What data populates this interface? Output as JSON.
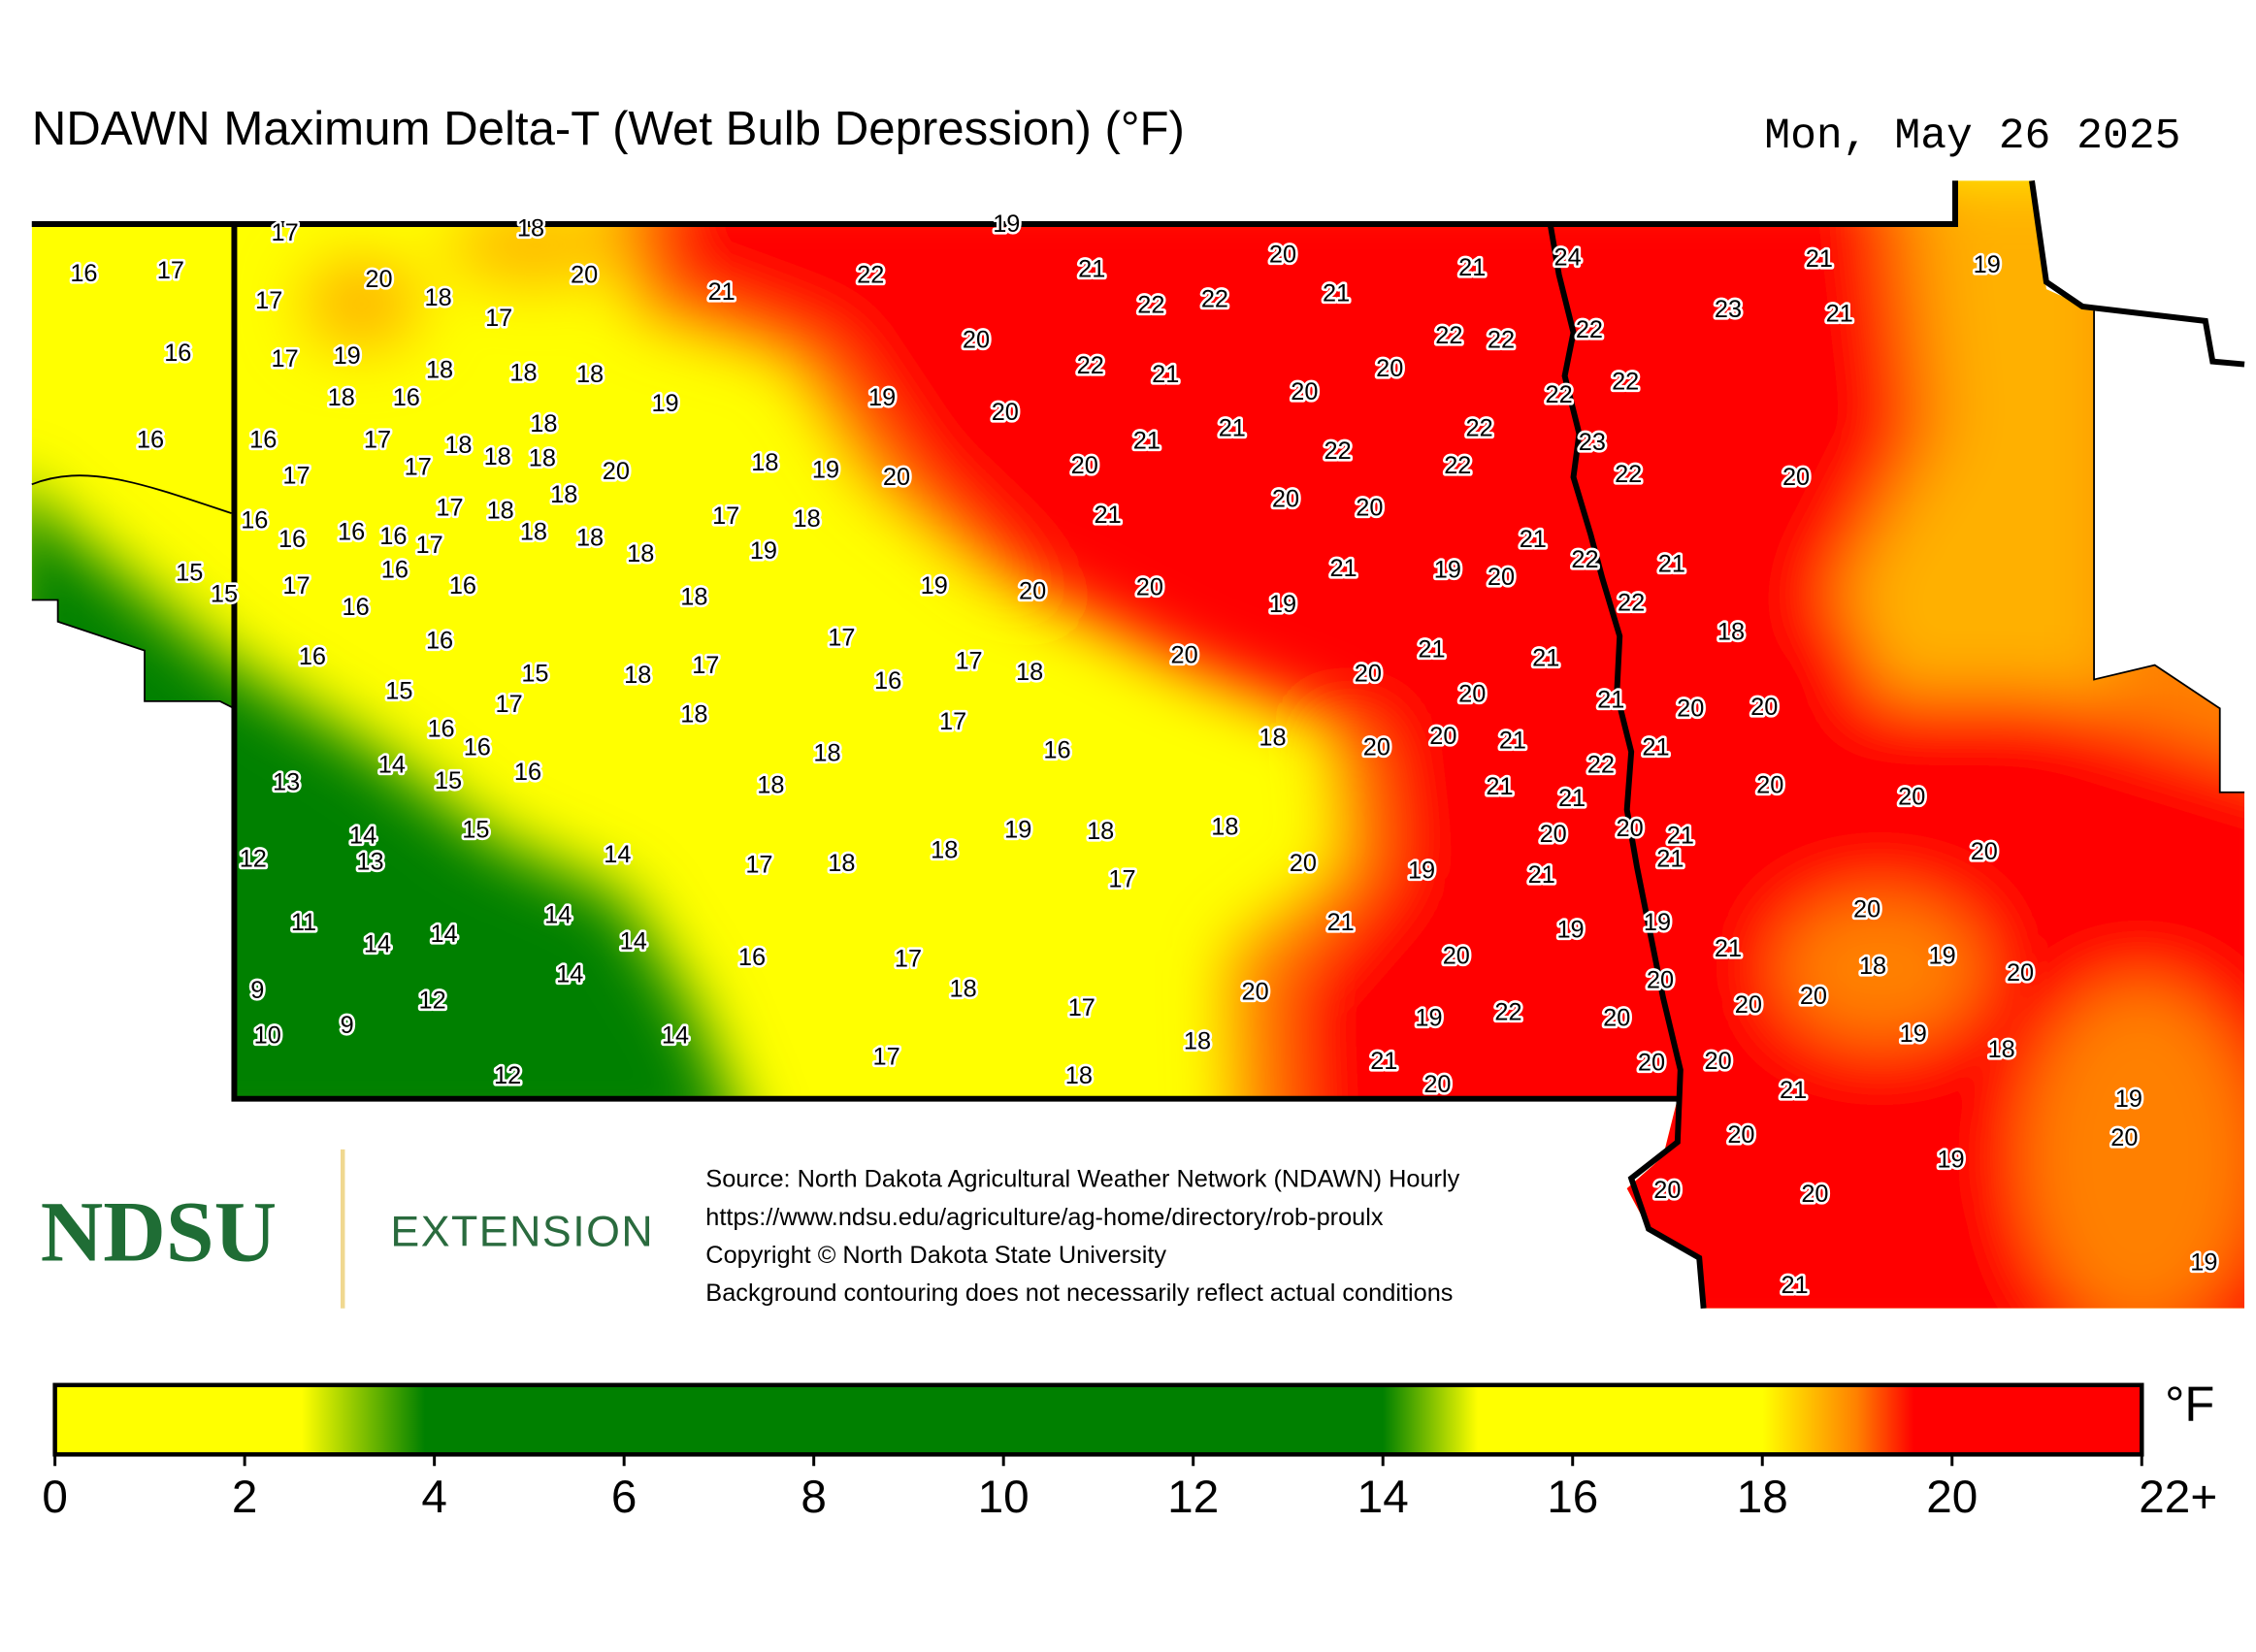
{
  "header": {
    "title": "NDAWN Maximum Delta-T (Wet Bulb Depression) (°F)",
    "date": "Mon, May 26 2025"
  },
  "stations": [
    17,
    18,
    19,
    16,
    17,
    20,
    20,
    20,
    21,
    24,
    21,
    19,
    21,
    22,
    21,
    17,
    18,
    17,
    22,
    22,
    21,
    23,
    21,
    16,
    17,
    19,
    20,
    22,
    22,
    22,
    18,
    18,
    18,
    22,
    21,
    20,
    18,
    16,
    19,
    19,
    20,
    22,
    22,
    20,
    18,
    16,
    16,
    17,
    18,
    18,
    18,
    17,
    17,
    20,
    18,
    19,
    20,
    21,
    21,
    22,
    22,
    22,
    23,
    22,
    20,
    20,
    17,
    18,
    18,
    16,
    21,
    20,
    20,
    17,
    18,
    16,
    16,
    16,
    17,
    18,
    18,
    18,
    19,
    21,
    22,
    21,
    15,
    15,
    17,
    16,
    16,
    16,
    19,
    20,
    20,
    19,
    21,
    19,
    20,
    18,
    22,
    18,
    17,
    16,
    16,
    17,
    18,
    15,
    16,
    17,
    18,
    20,
    21,
    20,
    21,
    15,
    17,
    18,
    17,
    20,
    21,
    20,
    20,
    16,
    16,
    14,
    18,
    16,
    18,
    20,
    20,
    21,
    21,
    22,
    13,
    15,
    16,
    18,
    21,
    21,
    20,
    20,
    15,
    14,
    19,
    18,
    18,
    20,
    20,
    21,
    12,
    13,
    14,
    17,
    18,
    18,
    17,
    20,
    19,
    21,
    21,
    20,
    14,
    11,
    14,
    14,
    14,
    16,
    17,
    21,
    20,
    19,
    19,
    21,
    20,
    18,
    19,
    20,
    14,
    9,
    18,
    20,
    20,
    20,
    20,
    12,
    17,
    9,
    10,
    19,
    22,
    20,
    19,
    18,
    14,
    18,
    17,
    21,
    20,
    20,
    12,
    18,
    20,
    21,
    19,
    20,
    20,
    19,
    20,
    20,
    19,
    21
  ],
  "footer": {
    "logo": "NDSU",
    "logo_sub": "EXTENSION",
    "notes": [
      "Source: North Dakota Agricultural Weather Network (NDAWN) Hourly",
      "https://www.ndsu.edu/agriculture/ag-home/directory/rob-proulx",
      "Copyright © North Dakota State University",
      "Background contouring does not necessarily reflect actual conditions"
    ]
  },
  "colorbar": {
    "unit": "°F",
    "lim": [
      0,
      22
    ],
    "ticks": [
      0,
      2,
      4,
      6,
      8,
      10,
      12,
      14,
      16,
      18,
      20,
      {
        "value": 22,
        "label": "22+"
      }
    ],
    "stops": [
      {
        "value": 0,
        "color": "#ffff00"
      },
      {
        "value": 2.6,
        "color": "#ffff00"
      },
      {
        "value": 3.9,
        "color": "#008000"
      },
      {
        "value": 14,
        "color": "#008000"
      },
      {
        "value": 15,
        "color": "#ffff00"
      },
      {
        "value": 18,
        "color": "#ffff00"
      },
      {
        "value": 19,
        "color": "#ff8000"
      },
      {
        "value": 19.6,
        "color": "#ff0000"
      },
      {
        "value": 22,
        "color": "#ff0000"
      }
    ]
  }
}
